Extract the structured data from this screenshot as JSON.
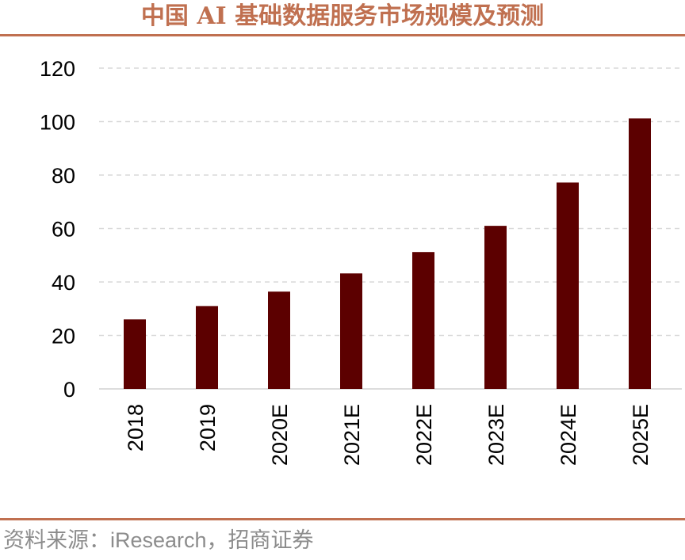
{
  "title": "中国 AI 基础数据服务市场规模及预测",
  "source": "资料来源：iResearch，招商证券",
  "colors": {
    "bar": "#5c0000",
    "accent": "#c07050",
    "grid": "#d9d9d9"
  },
  "chart_data": {
    "type": "bar",
    "title": "中国 AI 基础数据服务市场规模及预测",
    "xlabel": "",
    "ylabel": "",
    "categories": [
      "2018",
      "2019",
      "2020E",
      "2021E",
      "2022E",
      "2023E",
      "2024E",
      "2025E"
    ],
    "values": [
      26,
      31,
      36.4,
      43.2,
      51.2,
      61,
      77.2,
      101.2
    ],
    "ylim": [
      0,
      120
    ],
    "yticks": [
      "0",
      "20",
      "40",
      "60",
      "80",
      "100",
      "120"
    ],
    "grid": true,
    "legend": "none"
  }
}
